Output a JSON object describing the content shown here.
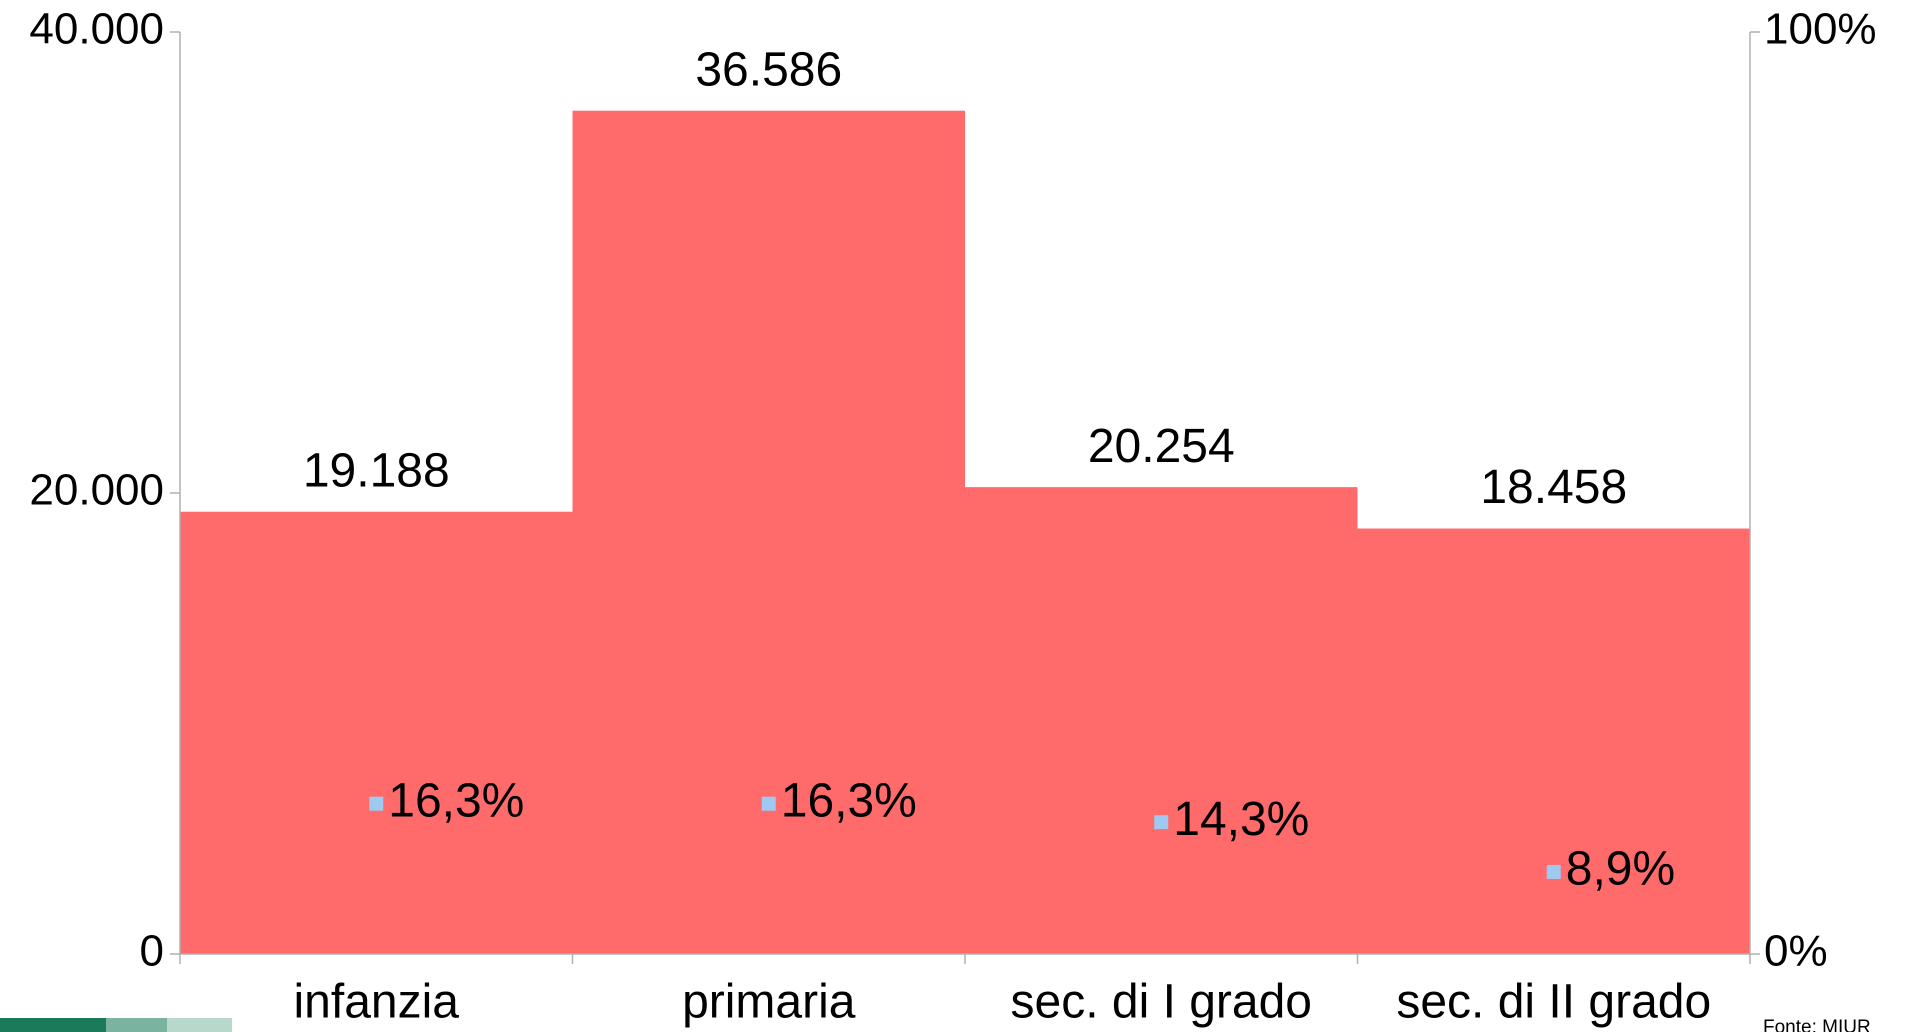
{
  "chart_data": {
    "type": "bar",
    "categories": [
      "infanzia",
      "primaria",
      "sec. di I grado",
      "sec. di II grado"
    ],
    "series": [
      {
        "type": "bar",
        "color": "#ff6b6b",
        "values": [
          19188,
          36586,
          20254,
          18458
        ],
        "value_labels": [
          "19.188",
          "36.586",
          "20.254",
          "18.458"
        ]
      },
      {
        "type": "scatter",
        "axis": "y2",
        "color": "#9ec9f0",
        "values": [
          16.3,
          16.3,
          14.3,
          8.9
        ],
        "value_labels": [
          "16,3%",
          "16,3%",
          "14,3%",
          "8,9%"
        ]
      }
    ],
    "ylim": [
      0,
      40000
    ],
    "yticks": [
      0,
      {
        "value": 20000,
        "label": "20.000"
      },
      {
        "value": 40000,
        "label": "40.000"
      }
    ],
    "y2lim": [
      0,
      100
    ],
    "y2ticks": [
      {
        "value": 0,
        "label": "0%"
      },
      {
        "value": 100,
        "label": "100%"
      }
    ],
    "source": "Fonte: MIUR"
  }
}
